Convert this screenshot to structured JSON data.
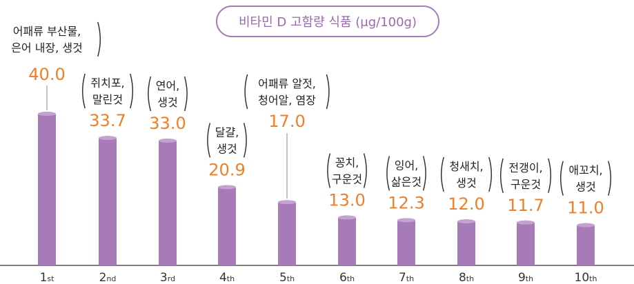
{
  "chart_data": {
    "type": "bar",
    "title": "비타민 D 고함량 식품  (μg/100g)",
    "ylim": [
      0,
      40.0
    ],
    "categories": [
      "1st",
      "2nd",
      "3rd",
      "4th",
      "5th",
      "6th",
      "7th",
      "8th",
      "9th",
      "10th"
    ],
    "rank_numbers": [
      "1",
      "2",
      "3",
      "4",
      "5",
      "6",
      "7",
      "8",
      "9",
      "10"
    ],
    "rank_suffixes": [
      "st",
      "nd",
      "rd",
      "th",
      "th",
      "th",
      "th",
      "th",
      "th",
      "th"
    ],
    "foods": [
      [
        "어패류 부산물,",
        "은어 내장, 생것"
      ],
      [
        "쥐치포,",
        "말린것"
      ],
      [
        "연어,",
        "생것"
      ],
      [
        "달걀,",
        "생것"
      ],
      [
        "어패류 알젓,",
        "청어알, 염장"
      ],
      [
        "꽁치,",
        "구운것"
      ],
      [
        "잉어,",
        "삶은것"
      ],
      [
        "청새치,",
        "생것"
      ],
      [
        "전갱이,",
        "구운것"
      ],
      [
        "애꼬치,",
        "생것"
      ]
    ],
    "values": [
      40.0,
      33.7,
      33.0,
      20.9,
      17.0,
      13.0,
      12.3,
      12.0,
      11.7,
      11.0
    ],
    "value_labels": [
      "40.0",
      "33.7",
      "33.0",
      "20.9",
      "17.0",
      "13.0",
      "12.3",
      "12.0",
      "11.7",
      "11.0"
    ],
    "colors": {
      "bar": "#a77bb8",
      "bar_top": "#c4a2d0",
      "value": "#ee7f28",
      "axis": "#555555",
      "text": "#222222"
    }
  }
}
